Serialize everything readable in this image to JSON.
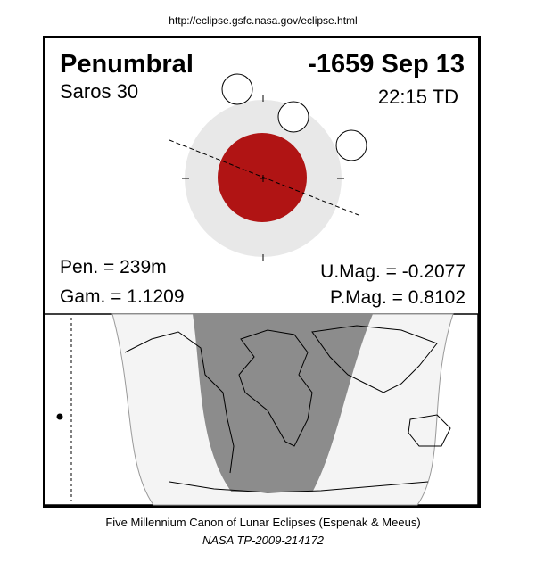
{
  "header": {
    "url": "http://eclipse.gsfc.nasa.gov/eclipse.html"
  },
  "panel": {
    "type": "Penumbral",
    "date": "-1659 Sep 13",
    "saros": "Saros  30",
    "time": "22:15 TD",
    "pen": "Pen. = 239m",
    "gam": "Gam. = 1.1209",
    "umag": "U.Mag. = -0.2077",
    "pmag": "P.Mag. = 0.8102"
  },
  "footer": {
    "canon": "Five Millennium Canon of Lunar Eclipses (Espenak & Meeus)",
    "ref": "NASA TP-2009-214172"
  }
}
